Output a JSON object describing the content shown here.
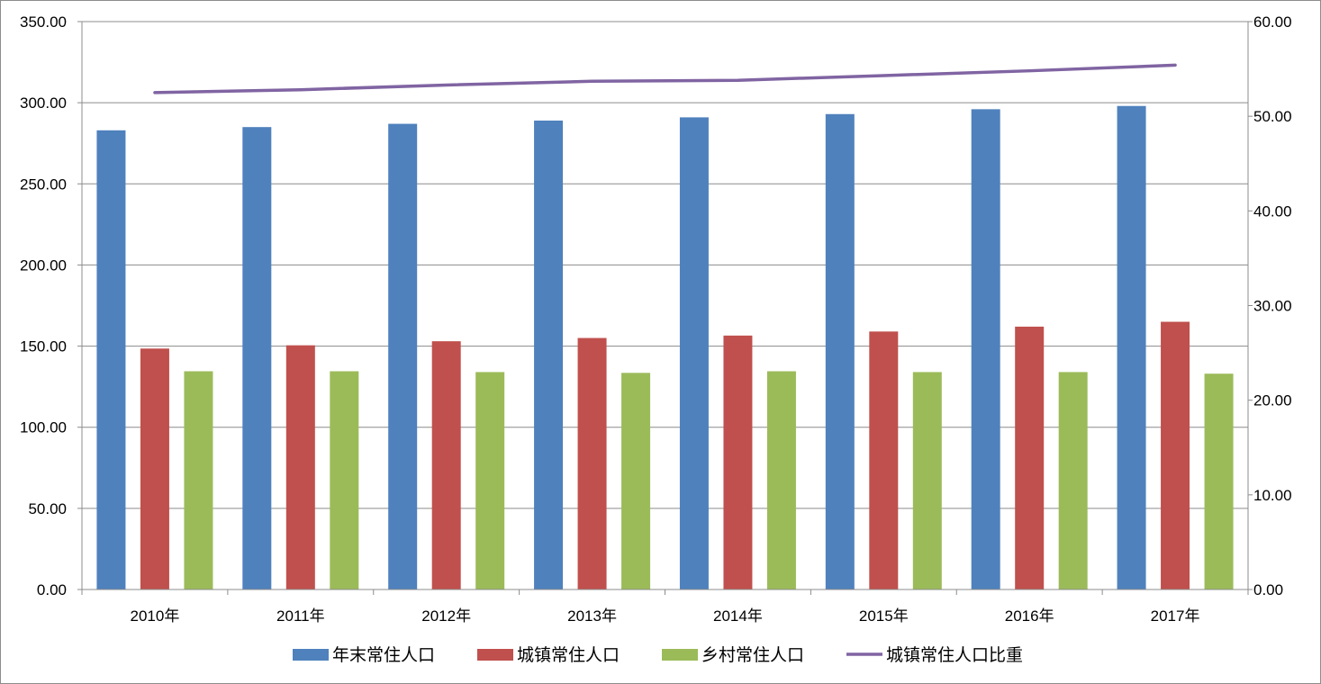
{
  "chart_data": {
    "type": "bar",
    "categories": [
      "2010年",
      "2011年",
      "2012年",
      "2013年",
      "2014年",
      "2015年",
      "2016年",
      "2017年"
    ],
    "series": [
      {
        "name": "年末常住人口",
        "type": "bar",
        "axis": "left",
        "color": "#4f81bd",
        "values": [
          283.0,
          285.0,
          287.0,
          289.0,
          291.0,
          293.0,
          296.0,
          298.0
        ]
      },
      {
        "name": "城镇常住人口",
        "type": "bar",
        "axis": "left",
        "color": "#c0504d",
        "values": [
          148.5,
          150.5,
          153.0,
          155.0,
          156.5,
          159.0,
          162.0,
          165.0
        ]
      },
      {
        "name": "乡村常住人口",
        "type": "bar",
        "axis": "left",
        "color": "#9bbb59",
        "values": [
          134.5,
          134.5,
          134.0,
          133.5,
          134.5,
          134.0,
          134.0,
          133.0
        ]
      },
      {
        "name": "城镇常住人口比重",
        "type": "line",
        "axis": "right",
        "color": "#8064a2",
        "values": [
          52.5,
          52.8,
          53.3,
          53.7,
          53.8,
          54.3,
          54.8,
          55.4
        ]
      }
    ],
    "y_left": {
      "ylim": [
        0,
        350
      ],
      "ticks": [
        "0.00",
        "50.00",
        "100.00",
        "150.00",
        "200.00",
        "250.00",
        "300.00",
        "350.00"
      ]
    },
    "y_right": {
      "ylim": [
        0,
        60
      ],
      "ticks": [
        "0.00",
        "10.00",
        "20.00",
        "30.00",
        "40.00",
        "50.00",
        "60.00"
      ]
    },
    "grid": "horizontal",
    "legend_position": "bottom",
    "title": "",
    "xlabel": "",
    "ylabel": ""
  }
}
